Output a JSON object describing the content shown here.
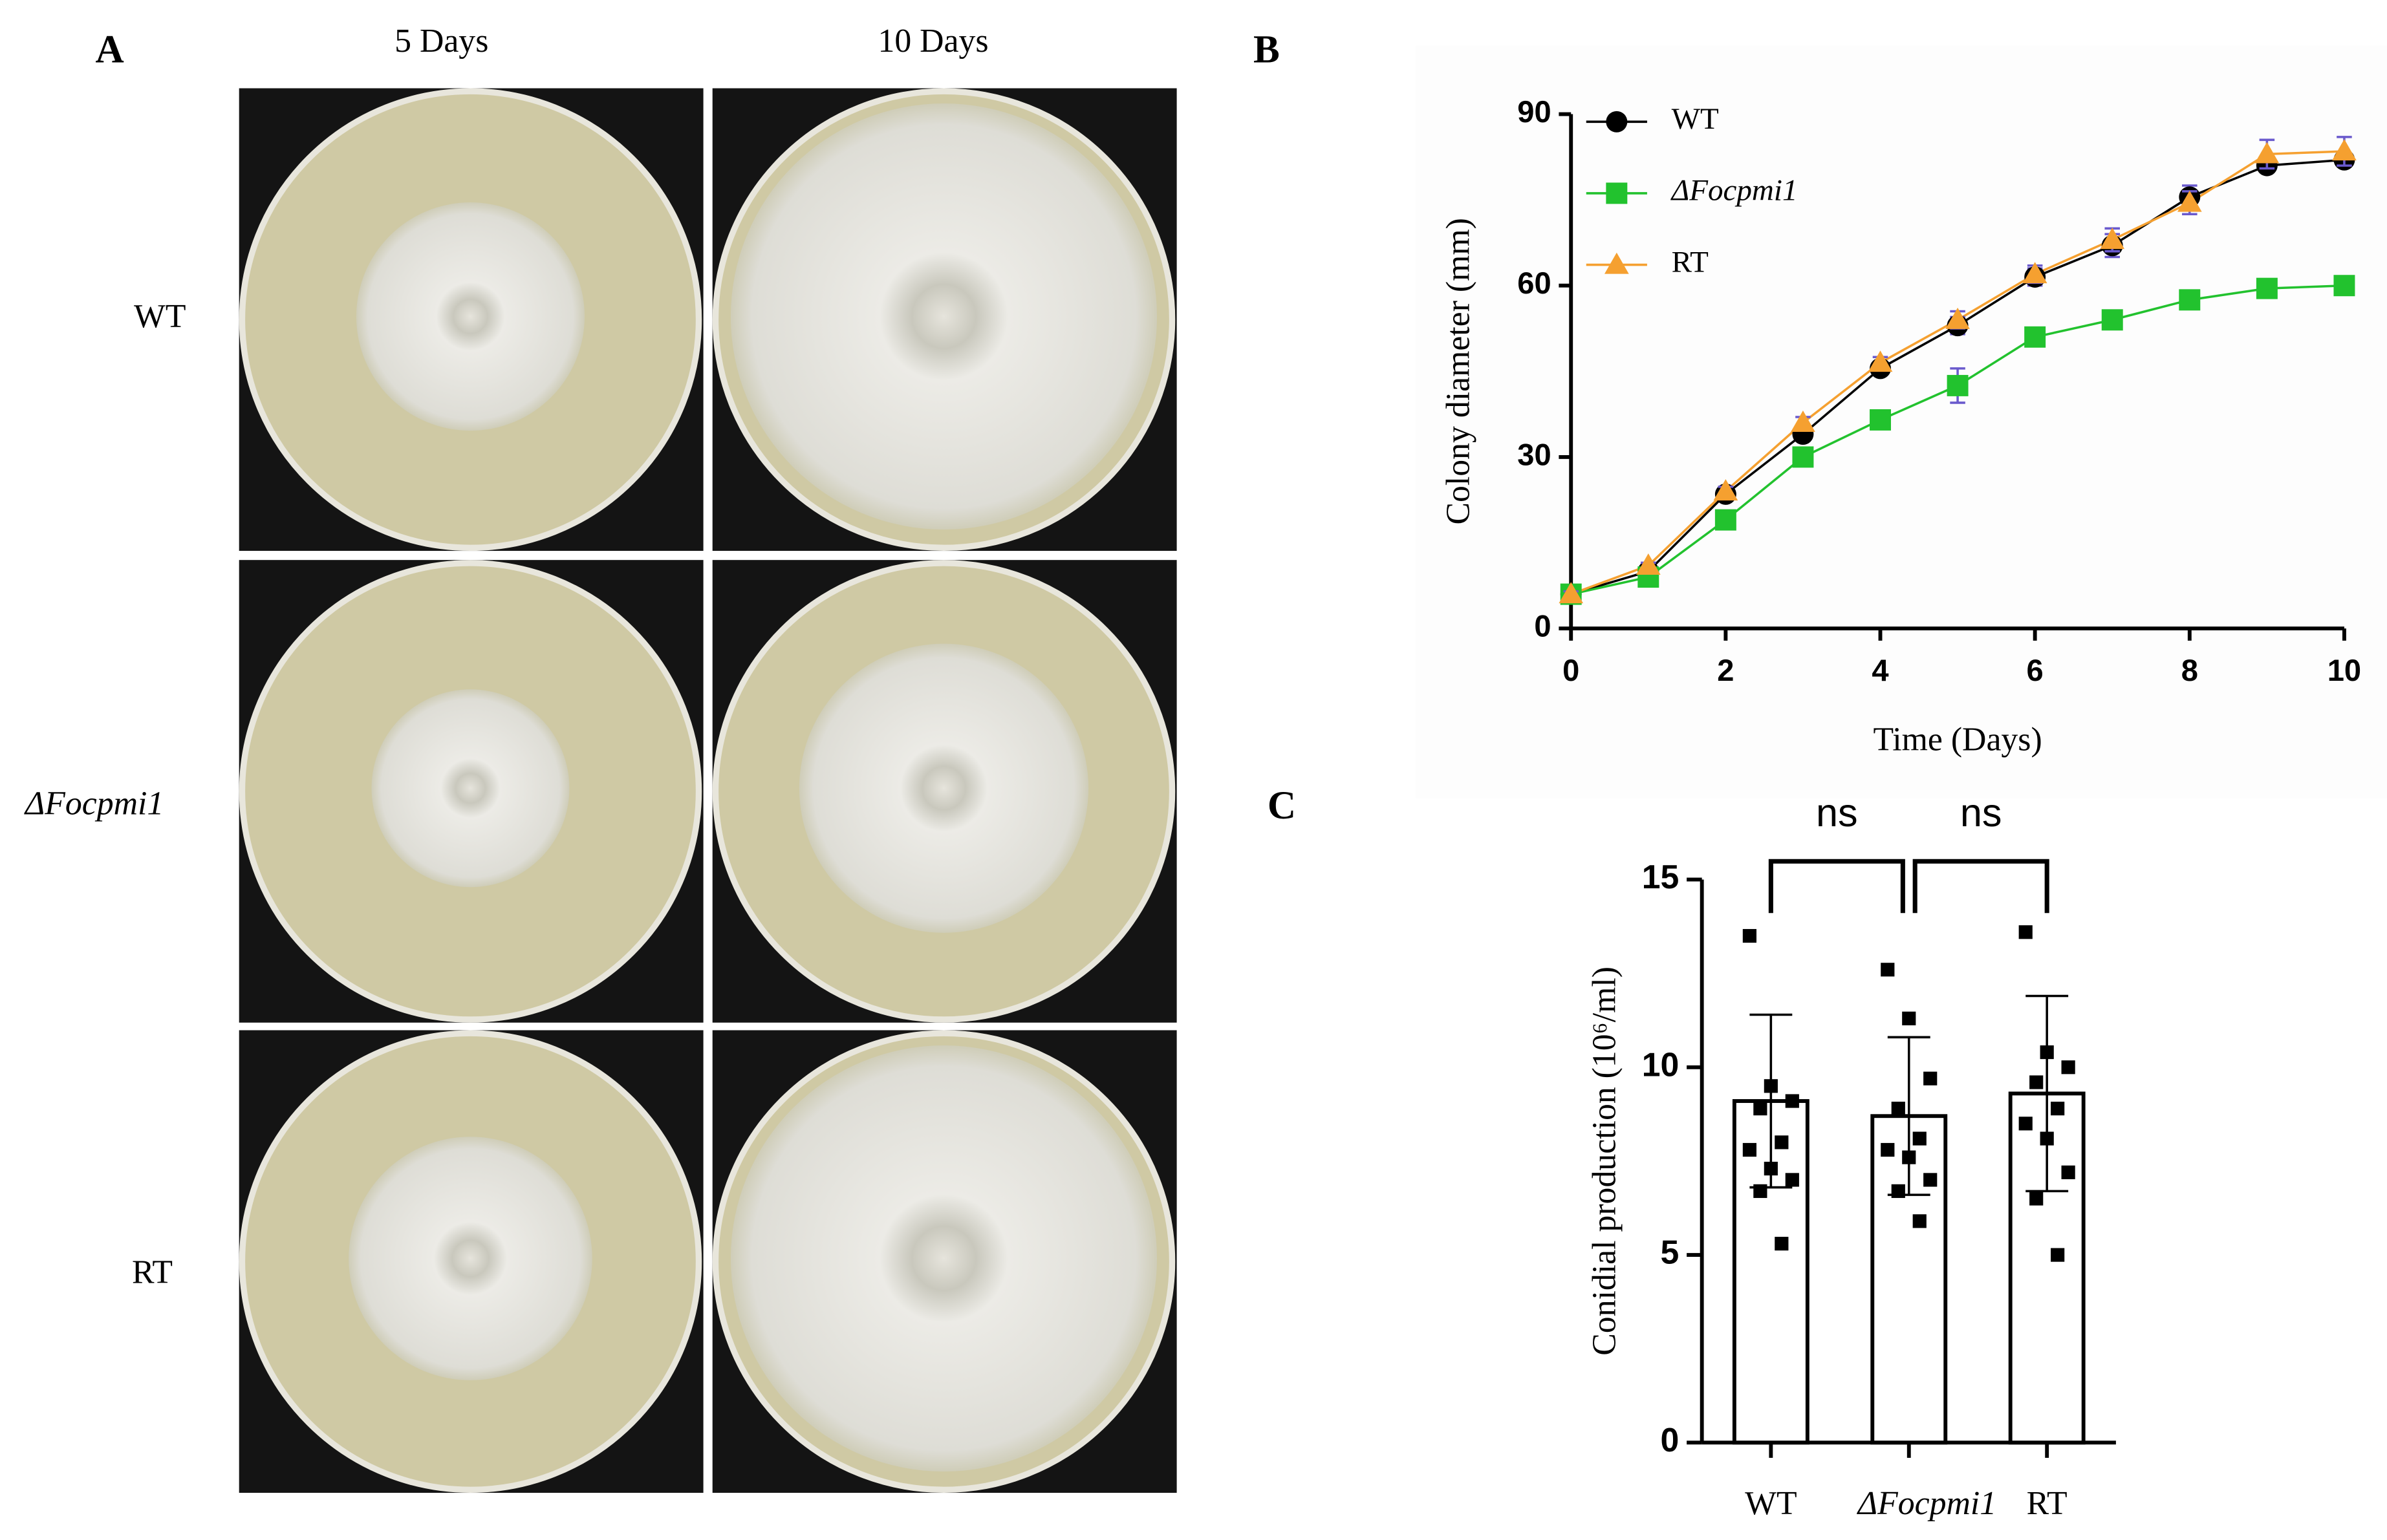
{
  "panel_a": {
    "label": "A",
    "columns": [
      "5 Days",
      "10 Days"
    ],
    "rows": [
      "WT",
      "ΔFocpmi1",
      "RT"
    ]
  },
  "chart_data": [
    {
      "type": "line",
      "panel": "B",
      "x_label": "Time (Days)",
      "y_label": "Colony diameter (mm)",
      "x": [
        0,
        1,
        2,
        3,
        4,
        5,
        6,
        7,
        8,
        9,
        10
      ],
      "series": [
        {
          "name": "WT",
          "color": "#000000",
          "marker": "circle",
          "values": [
            6,
            10,
            23.5,
            34,
            45.5,
            53,
            61.5,
            67,
            75.5,
            81,
            82
          ],
          "errors": [
            0.5,
            0.5,
            0.8,
            1,
            1,
            1.5,
            1.5,
            2,
            2,
            1,
            1
          ]
        },
        {
          "name": "ΔFocpmi1",
          "color": "#22c22e",
          "marker": "square",
          "values": [
            6,
            9,
            19,
            30,
            36.5,
            42.5,
            51,
            54,
            57.5,
            59.5,
            60
          ],
          "errors": [
            0.5,
            0.5,
            0.5,
            0.8,
            0.8,
            3,
            1,
            1.5,
            0.5,
            0.5,
            0.5
          ]
        },
        {
          "name": "RT",
          "color": "#f5a030",
          "marker": "triangle",
          "values": [
            6,
            11,
            24,
            36,
            46.5,
            54,
            62,
            68,
            74.5,
            83,
            83.5
          ],
          "errors": [
            0.5,
            0.5,
            0.8,
            1,
            1,
            1.5,
            1.5,
            2,
            2,
            2.5,
            2.5
          ]
        }
      ],
      "error_color": "#6a5acd",
      "xlim": [
        0,
        10
      ],
      "xticks": [
        0,
        2,
        4,
        6,
        8,
        10
      ],
      "ylim": [
        0,
        90
      ],
      "yticks": [
        0,
        30,
        60,
        90
      ],
      "legend": "top-left"
    },
    {
      "type": "bar",
      "panel": "C",
      "y_label": "Conidial production (10⁶/ml)",
      "categories": [
        "WT",
        "ΔFocpmi1",
        "RT"
      ],
      "values": [
        9.1,
        8.7,
        9.3
      ],
      "errors": [
        2.3,
        2.1,
        2.6
      ],
      "points": [
        [
          13.5,
          9.5,
          9.1,
          8.9,
          8.0,
          7.8,
          7.3,
          7.0,
          6.7,
          5.3
        ],
        [
          12.6,
          11.3,
          9.7,
          8.9,
          8.1,
          7.8,
          7.6,
          7.0,
          6.7,
          5.9
        ],
        [
          13.6,
          10.4,
          10.0,
          9.6,
          8.9,
          8.5,
          8.1,
          7.2,
          6.5,
          5.0
        ]
      ],
      "color": "#ffffff",
      "point_color": "#000000",
      "annotations": [
        "ns",
        "ns"
      ],
      "ylim": [
        0,
        15
      ],
      "yticks": [
        0,
        5,
        10,
        15
      ]
    }
  ]
}
